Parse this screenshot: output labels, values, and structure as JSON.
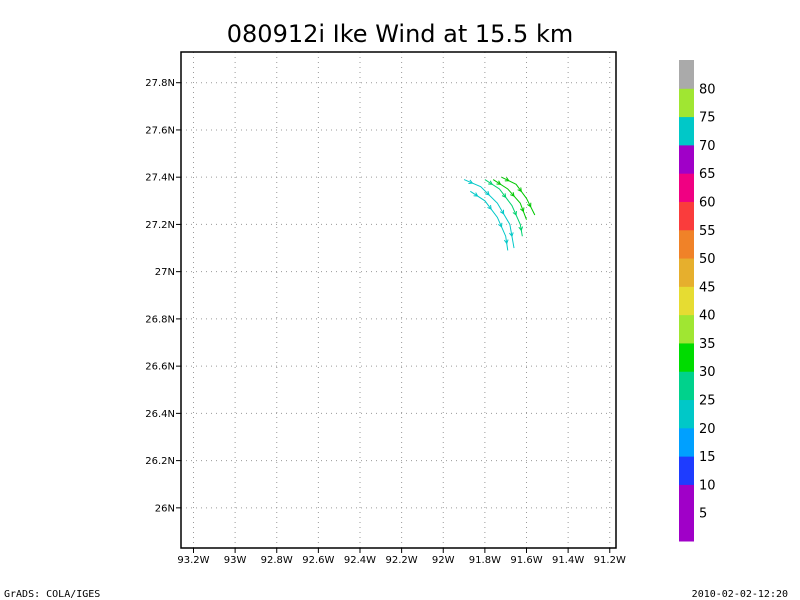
{
  "chart_data": {
    "type": "vector",
    "title": "080912i Ike Wind at 15.5 km",
    "x_ticks": [
      "93.2W",
      "93W",
      "92.8W",
      "92.6W",
      "92.4W",
      "92.2W",
      "92W",
      "91.8W",
      "91.6W",
      "91.4W",
      "91.2W"
    ],
    "x_tick_values": [
      -93.2,
      -93.0,
      -92.8,
      -92.6,
      -92.4,
      -92.2,
      -92.0,
      -91.8,
      -91.6,
      -91.4,
      -91.2
    ],
    "y_ticks": [
      "26N",
      "26.2N",
      "26.4N",
      "26.6N",
      "26.8N",
      "27N",
      "27.2N",
      "27.4N",
      "27.6N",
      "27.8N"
    ],
    "y_tick_values": [
      26.0,
      26.2,
      26.4,
      26.6,
      26.8,
      27.0,
      27.2,
      27.4,
      27.6,
      27.8
    ],
    "xlim": [
      -93.26,
      -91.17
    ],
    "ylim": [
      25.83,
      27.93
    ],
    "grid": true,
    "vectors": [
      {
        "name": "streamline-1",
        "color": "#00c8c8",
        "points": [
          [
            -91.9,
            27.39
          ],
          [
            -91.82,
            27.36
          ],
          [
            -91.74,
            27.29
          ],
          [
            -91.68,
            27.2
          ],
          [
            -91.66,
            27.1
          ]
        ]
      },
      {
        "name": "streamline-2",
        "color": "#00c8c8",
        "points": [
          [
            -91.87,
            27.34
          ],
          [
            -91.8,
            27.3
          ],
          [
            -91.74,
            27.23
          ],
          [
            -91.7,
            27.15
          ],
          [
            -91.69,
            27.09
          ]
        ]
      },
      {
        "name": "streamline-3",
        "color": "#00d26e",
        "points": [
          [
            -91.8,
            27.39
          ],
          [
            -91.73,
            27.35
          ],
          [
            -91.67,
            27.28
          ],
          [
            -91.63,
            27.2
          ],
          [
            -91.62,
            27.15
          ]
        ]
      },
      {
        "name": "streamline-4",
        "color": "#00c800",
        "points": [
          [
            -91.76,
            27.39
          ],
          [
            -91.69,
            27.35
          ],
          [
            -91.63,
            27.29
          ],
          [
            -91.6,
            27.22
          ]
        ]
      },
      {
        "name": "streamline-5",
        "color": "#00c800",
        "points": [
          [
            -91.72,
            27.4
          ],
          [
            -91.65,
            27.37
          ],
          [
            -91.6,
            27.31
          ],
          [
            -91.56,
            27.24
          ]
        ]
      }
    ],
    "colorbar": {
      "labels": [
        "5",
        "10",
        "15",
        "20",
        "25",
        "30",
        "35",
        "40",
        "45",
        "50",
        "55",
        "60",
        "65",
        "70",
        "75",
        "80"
      ],
      "colors": [
        "#a000c8",
        "#a000c8",
        "#1e3cff",
        "#00a0ff",
        "#00c8c8",
        "#00d28c",
        "#00dc00",
        "#a0e632",
        "#e6dc32",
        "#e6af2d",
        "#f08228",
        "#fa3c3c",
        "#f00082",
        "#a000c8",
        "#00c8c8",
        "#a0e632",
        "#aaaaaa"
      ]
    }
  },
  "footer": {
    "left": "GrADS: COLA/IGES",
    "right": "2010-02-02-12:20"
  }
}
